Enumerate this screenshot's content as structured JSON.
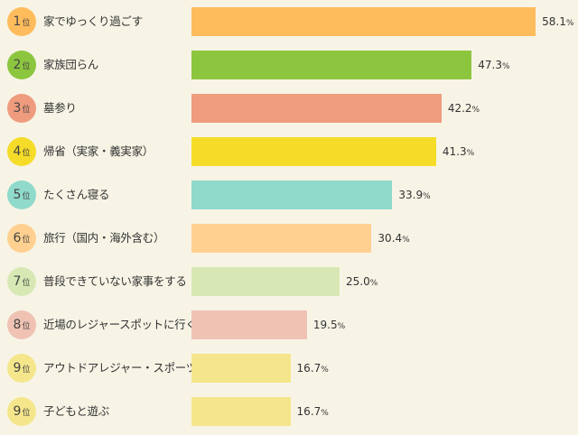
{
  "chart_data": {
    "type": "bar",
    "orientation": "horizontal",
    "xlim": [
      0,
      60
    ],
    "unit": "%",
    "rank_unit": "位",
    "items": [
      {
        "rank": "1",
        "label": "家でゆっくり過ごす",
        "value": 58.1,
        "display": "58.1",
        "color": "#ffbc5c",
        "badge_color": "#ffbc5c"
      },
      {
        "rank": "2",
        "label": "家族団らん",
        "value": 47.3,
        "display": "47.3",
        "color": "#8cc63f",
        "badge_color": "#8cc63f"
      },
      {
        "rank": "3",
        "label": "墓参り",
        "value": 42.2,
        "display": "42.2",
        "color": "#ef9b7e",
        "badge_color": "#ef9b7e"
      },
      {
        "rank": "4",
        "label": "帰省（実家・義実家）",
        "value": 41.3,
        "display": "41.3",
        "color": "#f5dc28",
        "badge_color": "#f5dc28"
      },
      {
        "rank": "5",
        "label": "たくさん寝る",
        "value": 33.9,
        "display": "33.9",
        "color": "#8fdacb",
        "badge_color": "#8fdacb"
      },
      {
        "rank": "6",
        "label": "旅行（国内・海外含む）",
        "value": 30.4,
        "display": "30.4",
        "color": "#ffd090",
        "badge_color": "#ffd090"
      },
      {
        "rank": "7",
        "label": "普段できていない家事をする",
        "value": 25.0,
        "display": "25.0",
        "color": "#d8e8b4",
        "badge_color": "#d8e8b4"
      },
      {
        "rank": "8",
        "label": "近場のレジャースポットに行く",
        "value": 19.5,
        "display": "19.5",
        "color": "#f0c2b4",
        "badge_color": "#f0c2b4"
      },
      {
        "rank": "9",
        "label": "アウトドアレジャー・スポーツ",
        "value": 16.7,
        "display": "16.7",
        "color": "#f5e68c",
        "badge_color": "#f5e68c"
      },
      {
        "rank": "9",
        "label": "子どもと遊ぶ",
        "value": 16.7,
        "display": "16.7",
        "color": "#f5e68c",
        "badge_color": "#f5e68c"
      }
    ]
  }
}
